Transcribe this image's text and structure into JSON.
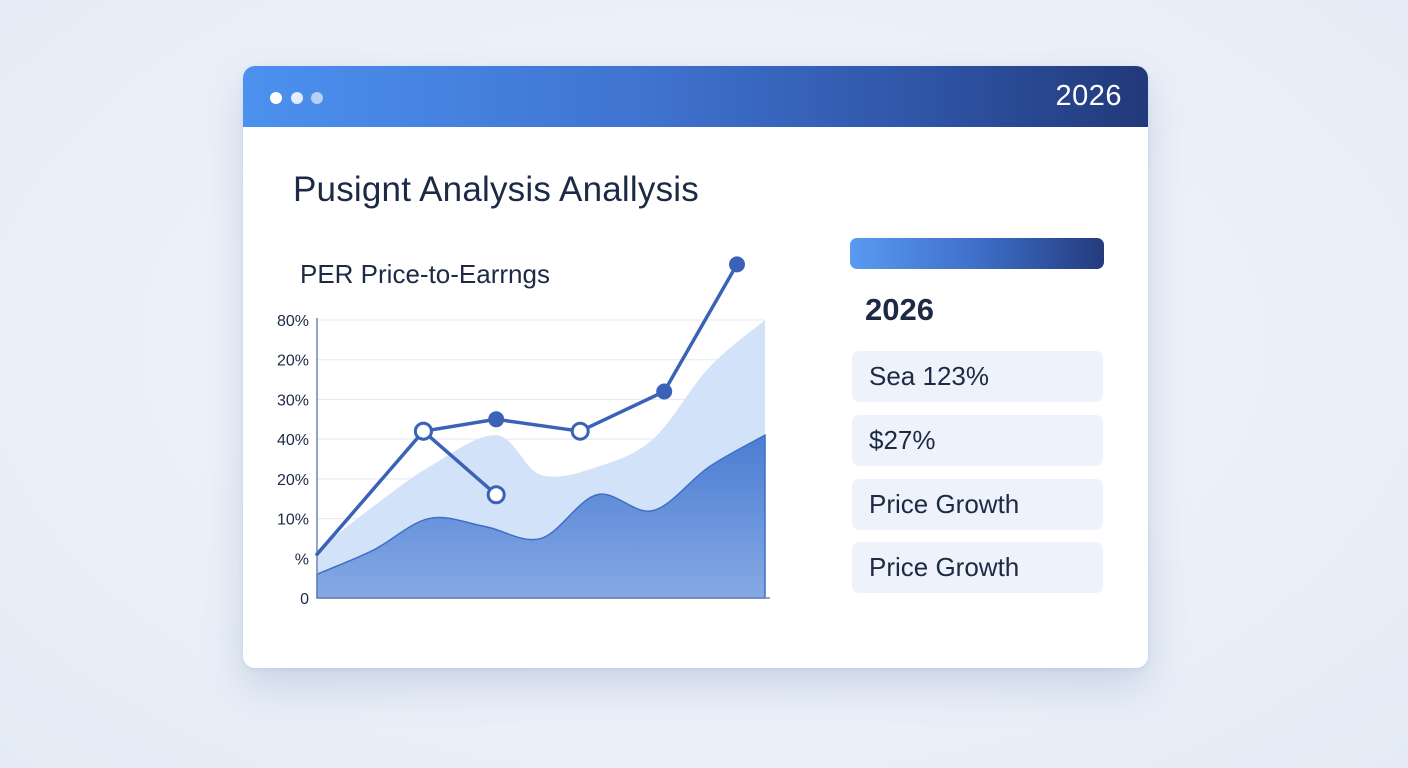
{
  "window": {
    "year_badge": "2026",
    "title": "Pusignt Analysis Anallysis"
  },
  "chart": {
    "title": "PER Price-to-Earrngs"
  },
  "chart_data": {
    "type": "line",
    "title": "PER Price-to-Earrngs",
    "y_tick_labels": [
      "80%",
      "20%",
      "30%",
      "40%",
      "20%",
      "10%",
      "%",
      "0"
    ],
    "ylim": [
      0,
      7
    ],
    "grid": true,
    "series": [
      {
        "values_xy": [
          [
            0,
            1.1
          ],
          [
            1.9,
            4.2
          ],
          [
            3.2,
            4.5
          ],
          [
            4.7,
            4.2
          ],
          [
            6.2,
            5.2
          ],
          [
            7.5,
            8.4
          ]
        ],
        "markers": [
          "none",
          "hollow",
          "filled",
          "hollow",
          "filled",
          "filled"
        ]
      },
      {
        "values_xy": [
          [
            1.9,
            4.2
          ],
          [
            3.2,
            2.6
          ]
        ],
        "markers": [
          "hollow",
          "hollow"
        ]
      }
    ],
    "areas": [
      {
        "points": [
          [
            0,
            1.2
          ],
          [
            1,
            2.3
          ],
          [
            2,
            3.3
          ],
          [
            3.2,
            4.1
          ],
          [
            4,
            3.1
          ],
          [
            5,
            3.3
          ],
          [
            6,
            4.0
          ],
          [
            7,
            5.8
          ],
          [
            8,
            7.0
          ]
        ]
      },
      {
        "points": [
          [
            0,
            0.6
          ],
          [
            1,
            1.2
          ],
          [
            2,
            2.0
          ],
          [
            3,
            1.8
          ],
          [
            4,
            1.5
          ],
          [
            5,
            2.6
          ],
          [
            6,
            2.2
          ],
          [
            7,
            3.3
          ],
          [
            8,
            4.1
          ]
        ]
      }
    ],
    "colors": {
      "line": "#3a63b8",
      "area_light": "#d2e2f8",
      "area_dark": "#5a8ad8",
      "axis": "#6f86b5",
      "grid": "#e3e8f2"
    }
  },
  "sidebar": {
    "year": "2026",
    "stats": [
      "Sea 123%",
      "$27%",
      "Price Growth",
      "Price Growth"
    ]
  },
  "colors": {
    "accent": "#3f73cf",
    "accent_dark": "#22397a",
    "card_bg": "#edf2fb",
    "text": "#1d2a44"
  }
}
